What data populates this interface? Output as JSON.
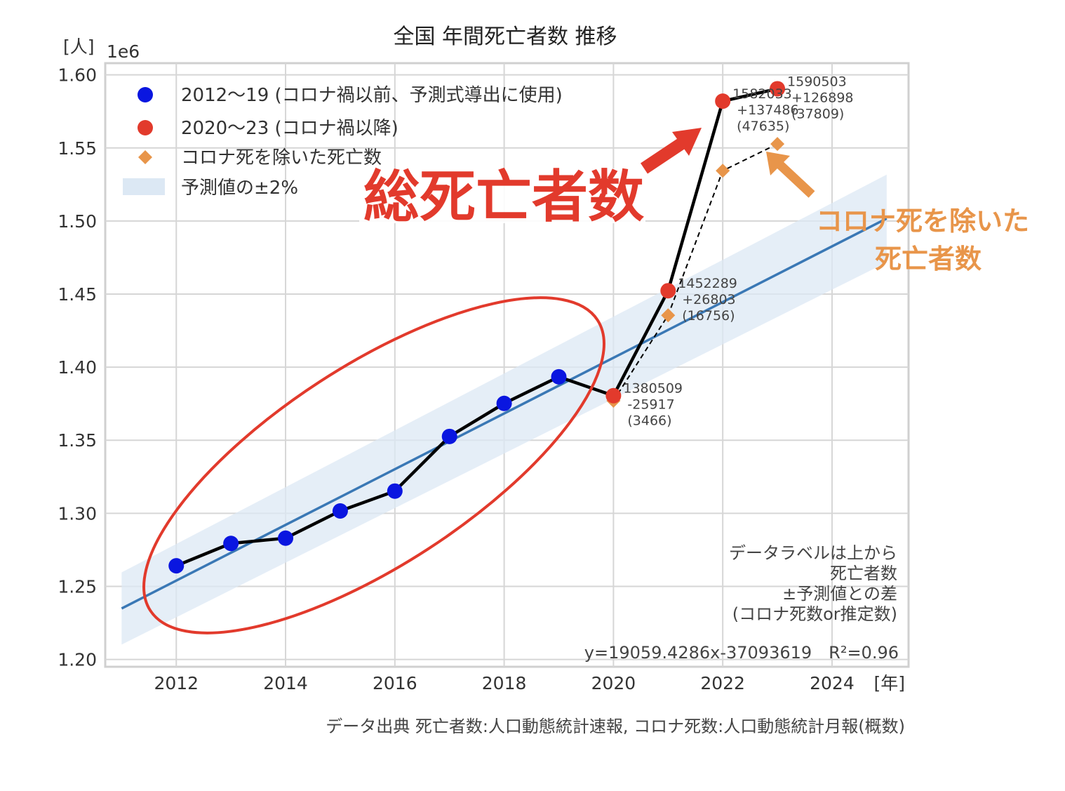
{
  "chart_data": {
    "type": "scatter",
    "title": "全国 年間死亡者数 推移",
    "ylabel": "[人]",
    "y_scale_label": "1e6",
    "xlabel": "[年]",
    "xlim": [
      2010.7,
      2025.4
    ],
    "ylim": [
      1.195,
      1.608
    ],
    "xticks": [
      "2012",
      "2014",
      "2016",
      "2018",
      "2020",
      "2022",
      "2024"
    ],
    "yticks": [
      "1.20",
      "1.25",
      "1.30",
      "1.35",
      "1.40",
      "1.45",
      "1.50",
      "1.55",
      "1.60"
    ],
    "series": [
      {
        "name": "2012〜19 (コロナ禍以前、予測式導出に使用)",
        "color": "#0a16e0",
        "x": [
          2012,
          2013,
          2014,
          2015,
          2016,
          2017,
          2018,
          2019
        ],
        "y": [
          1.2641,
          1.2794,
          1.283,
          1.3016,
          1.3152,
          1.3526,
          1.3752,
          1.3934
        ]
      },
      {
        "name": "2020〜23 (コロナ禍以降)",
        "color": "#e23a2c",
        "x": [
          2020,
          2021,
          2022,
          2023
        ],
        "y": [
          1.3805,
          1.4523,
          1.582,
          1.5905
        ]
      },
      {
        "name": "コロナ死を除いた死亡数",
        "color": "#e8954a",
        "x": [
          2020,
          2021,
          2022,
          2023
        ],
        "y": [
          1.377,
          1.4355,
          1.5344,
          1.5527
        ]
      },
      {
        "name": "予測値の±2%",
        "color": "#dce8f4",
        "band_pct": 2
      }
    ],
    "regression": {
      "color": "#3a78b5",
      "slope": 19059.4286,
      "intercept": -37093619,
      "x_range": [
        2011,
        2025
      ]
    },
    "data_labels": [
      {
        "x": 2020,
        "y": 1.3805,
        "lines": [
          "1380509",
          "-25917",
          "(3466)"
        ]
      },
      {
        "x": 2021,
        "y": 1.4523,
        "lines": [
          "1452289",
          "+26803",
          "(16756)"
        ]
      },
      {
        "x": 2022,
        "y": 1.582,
        "lines": [
          "1582033",
          "+137486",
          "(47635)"
        ]
      },
      {
        "x": 2023,
        "y": 1.5905,
        "lines": [
          "1590503",
          "+126898",
          "(37809)"
        ]
      }
    ],
    "annotations": {
      "total_deaths": "総死亡者数",
      "excluding_covid": [
        "コロナ死を除いた",
        "死亡者数"
      ],
      "label_note": [
        "データラベルは上から",
        "死亡者数",
        "±予測値との差",
        "(コロナ死数or推定数)"
      ],
      "equation": "y=19059.4286x-37093619　R²=0.96",
      "source": "データ出典 死亡者数:人口動態統計速報, コロナ死数:人口動態統計月報(概数)"
    }
  }
}
